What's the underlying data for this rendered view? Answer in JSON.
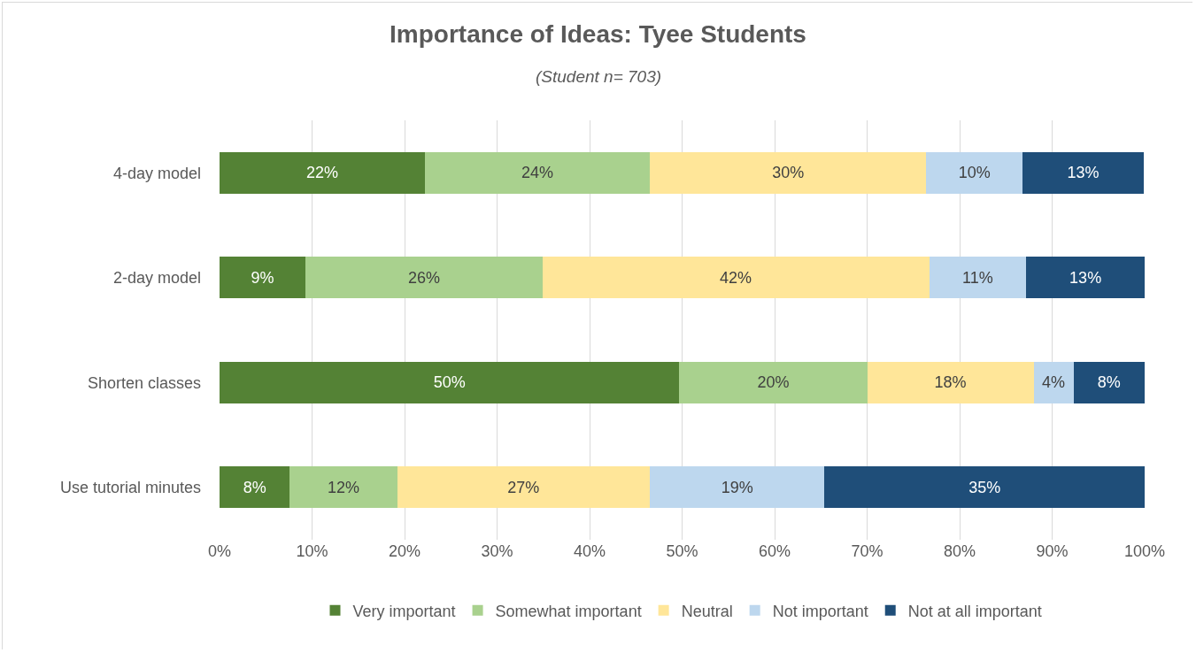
{
  "chart_data": {
    "type": "bar",
    "orientation": "horizontal",
    "stacked": true,
    "title": "Importance of Ideas: Tyee Students",
    "subtitle": "(Student n= 703)",
    "categories": [
      "4-day model",
      "2-day model",
      "Shorten classes",
      "Use tutorial minutes"
    ],
    "series": [
      {
        "name": "Very important",
        "color": "#548235",
        "values": [
          22.2,
          9.3,
          49.7,
          7.6
        ],
        "value_labels": [
          "22%",
          "9%",
          "50%",
          "8%"
        ]
      },
      {
        "name": "Somewhat important",
        "color": "#a9d18e",
        "values": [
          24.3,
          25.6,
          20.3,
          11.6
        ],
        "value_labels": [
          "24%",
          "26%",
          "20%",
          "12%"
        ]
      },
      {
        "name": "Neutral",
        "color": "#ffe699",
        "values": [
          29.9,
          41.8,
          18,
          27.3
        ],
        "value_labels": [
          "30%",
          "42%",
          "18%",
          "27%"
        ]
      },
      {
        "name": "Not important",
        "color": "#bdd7ee",
        "values": [
          10.4,
          10.5,
          4.3,
          18.9
        ],
        "value_labels": [
          "10%",
          "11%",
          "4%",
          "19%"
        ]
      },
      {
        "name": "Not at all important",
        "color": "#1f4e79",
        "values": [
          13.1,
          12.8,
          7.7,
          34.6
        ],
        "value_labels": [
          "13%",
          "13%",
          "8%",
          "35%"
        ]
      }
    ],
    "xlim": [
      0,
      100
    ],
    "xticks": [
      {
        "value": 0,
        "label": "0%"
      },
      {
        "value": 10,
        "label": "10%"
      },
      {
        "value": 20,
        "label": "20%"
      },
      {
        "value": 30,
        "label": "30%"
      },
      {
        "value": 40,
        "label": "40%"
      },
      {
        "value": 50,
        "label": "50%"
      },
      {
        "value": 60,
        "label": "60%"
      },
      {
        "value": 70,
        "label": "70%"
      },
      {
        "value": 80,
        "label": "80%"
      },
      {
        "value": 90,
        "label": "90%"
      },
      {
        "value": 100,
        "label": "100%"
      }
    ],
    "grid": "x",
    "legend": "bottom"
  }
}
